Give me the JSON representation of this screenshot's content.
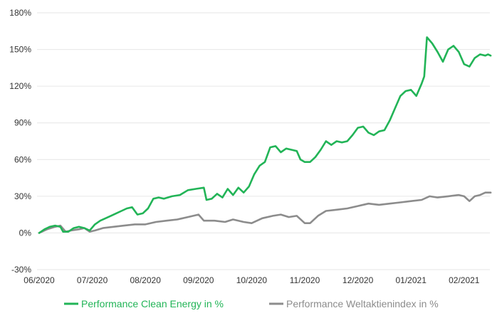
{
  "chart_data": {
    "type": "line",
    "title": "",
    "xlabel": "",
    "ylabel": "",
    "ylim": [
      -30,
      180
    ],
    "y_ticks": [
      {
        "value": -30,
        "label": "-30%"
      },
      {
        "value": 0,
        "label": "0%"
      },
      {
        "value": 30,
        "label": "30%"
      },
      {
        "value": 60,
        "label": "60%"
      },
      {
        "value": 90,
        "label": "90%"
      },
      {
        "value": 120,
        "label": "120%"
      },
      {
        "value": 150,
        "label": "150%"
      },
      {
        "value": 180,
        "label": "180%"
      }
    ],
    "x_ticks": [
      "06/2020",
      "07/2020",
      "08/2020",
      "09/2020",
      "10/2020",
      "11/2020",
      "12/2020",
      "01/2021",
      "02/2021"
    ],
    "x_unit": "months since 06/2020",
    "grid": "horizontal",
    "legend_position": "bottom",
    "series": [
      {
        "name": "Performance Clean Energy in %",
        "color": "#22b457",
        "points": [
          [
            0.0,
            0
          ],
          [
            0.1,
            3
          ],
          [
            0.2,
            5
          ],
          [
            0.3,
            6
          ],
          [
            0.4,
            5
          ],
          [
            0.45,
            1
          ],
          [
            0.55,
            1
          ],
          [
            0.65,
            4
          ],
          [
            0.75,
            5
          ],
          [
            0.85,
            4
          ],
          [
            0.95,
            2
          ],
          [
            1.05,
            7
          ],
          [
            1.15,
            10
          ],
          [
            1.25,
            12
          ],
          [
            1.35,
            14
          ],
          [
            1.45,
            16
          ],
          [
            1.55,
            18
          ],
          [
            1.65,
            20
          ],
          [
            1.75,
            21
          ],
          [
            1.85,
            15
          ],
          [
            1.95,
            16
          ],
          [
            2.05,
            20
          ],
          [
            2.15,
            28
          ],
          [
            2.25,
            29
          ],
          [
            2.35,
            28
          ],
          [
            2.5,
            30
          ],
          [
            2.65,
            31
          ],
          [
            2.8,
            35
          ],
          [
            2.95,
            36
          ],
          [
            3.1,
            37
          ],
          [
            3.15,
            27
          ],
          [
            3.25,
            28
          ],
          [
            3.35,
            32
          ],
          [
            3.45,
            29
          ],
          [
            3.55,
            36
          ],
          [
            3.65,
            31
          ],
          [
            3.75,
            37
          ],
          [
            3.85,
            33
          ],
          [
            3.95,
            38
          ],
          [
            4.05,
            48
          ],
          [
            4.15,
            55
          ],
          [
            4.25,
            58
          ],
          [
            4.35,
            70
          ],
          [
            4.45,
            71
          ],
          [
            4.55,
            66
          ],
          [
            4.65,
            69
          ],
          [
            4.75,
            68
          ],
          [
            4.85,
            67
          ],
          [
            4.92,
            60
          ],
          [
            5.0,
            58
          ],
          [
            5.1,
            58
          ],
          [
            5.2,
            62
          ],
          [
            5.3,
            68
          ],
          [
            5.4,
            75
          ],
          [
            5.5,
            72
          ],
          [
            5.6,
            75
          ],
          [
            5.7,
            74
          ],
          [
            5.8,
            75
          ],
          [
            5.9,
            80
          ],
          [
            6.0,
            86
          ],
          [
            6.1,
            87
          ],
          [
            6.2,
            82
          ],
          [
            6.3,
            80
          ],
          [
            6.4,
            83
          ],
          [
            6.5,
            84
          ],
          [
            6.6,
            92
          ],
          [
            6.7,
            102
          ],
          [
            6.8,
            112
          ],
          [
            6.9,
            116
          ],
          [
            7.0,
            117
          ],
          [
            7.1,
            112
          ],
          [
            7.2,
            122
          ],
          [
            7.25,
            128
          ],
          [
            7.3,
            160
          ],
          [
            7.4,
            155
          ],
          [
            7.5,
            148
          ],
          [
            7.6,
            140
          ],
          [
            7.7,
            150
          ],
          [
            7.8,
            153
          ],
          [
            7.9,
            148
          ],
          [
            8.0,
            138
          ],
          [
            8.1,
            136
          ],
          [
            8.2,
            143
          ],
          [
            8.3,
            146
          ],
          [
            8.4,
            145
          ],
          [
            8.45,
            146
          ],
          [
            8.5,
            145
          ]
        ]
      },
      {
        "name": "Performance Weltaktienindex in %",
        "color": "#8c8c8c",
        "points": [
          [
            0.0,
            0
          ],
          [
            0.15,
            3
          ],
          [
            0.3,
            5
          ],
          [
            0.4,
            6
          ],
          [
            0.5,
            1
          ],
          [
            0.6,
            2
          ],
          [
            0.75,
            3
          ],
          [
            0.85,
            4
          ],
          [
            0.95,
            1
          ],
          [
            1.05,
            2
          ],
          [
            1.2,
            4
          ],
          [
            1.4,
            5
          ],
          [
            1.6,
            6
          ],
          [
            1.8,
            7
          ],
          [
            2.0,
            7
          ],
          [
            2.2,
            9
          ],
          [
            2.4,
            10
          ],
          [
            2.6,
            11
          ],
          [
            2.8,
            13
          ],
          [
            3.0,
            15
          ],
          [
            3.1,
            10
          ],
          [
            3.3,
            10
          ],
          [
            3.5,
            9
          ],
          [
            3.65,
            11
          ],
          [
            3.85,
            9
          ],
          [
            4.0,
            8
          ],
          [
            4.2,
            12
          ],
          [
            4.4,
            14
          ],
          [
            4.55,
            15
          ],
          [
            4.7,
            13
          ],
          [
            4.85,
            14
          ],
          [
            5.0,
            8
          ],
          [
            5.1,
            8
          ],
          [
            5.25,
            14
          ],
          [
            5.4,
            18
          ],
          [
            5.6,
            19
          ],
          [
            5.8,
            20
          ],
          [
            6.0,
            22
          ],
          [
            6.2,
            24
          ],
          [
            6.4,
            23
          ],
          [
            6.6,
            24
          ],
          [
            6.8,
            25
          ],
          [
            7.0,
            26
          ],
          [
            7.2,
            27
          ],
          [
            7.35,
            30
          ],
          [
            7.5,
            29
          ],
          [
            7.7,
            30
          ],
          [
            7.9,
            31
          ],
          [
            8.0,
            30
          ],
          [
            8.1,
            26
          ],
          [
            8.2,
            30
          ],
          [
            8.3,
            31
          ],
          [
            8.4,
            33
          ],
          [
            8.5,
            33
          ]
        ]
      }
    ]
  }
}
